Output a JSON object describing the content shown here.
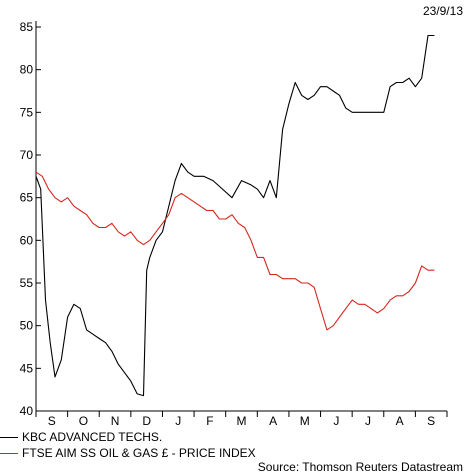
{
  "chart_data": {
    "type": "line",
    "date_label": "23/9/13",
    "source": "Source: Thomson Reuters Datastream",
    "x_tick_labels": [
      "S",
      "O",
      "N",
      "D",
      "J",
      "F",
      "M",
      "A",
      "M",
      "J",
      "J",
      "A",
      "S"
    ],
    "ylim": [
      40,
      85
    ],
    "y_ticks": [
      40,
      45,
      50,
      55,
      60,
      65,
      70,
      75,
      80,
      85
    ],
    "colors": {
      "kbc": "#000000",
      "ftse": "#d7261e"
    },
    "series": [
      {
        "name": "KBC ADVANCED TECHS.",
        "color": "#000000",
        "x": [
          0,
          0.15,
          0.3,
          0.45,
          0.6,
          0.8,
          1.0,
          1.2,
          1.4,
          1.6,
          1.8,
          2.0,
          2.2,
          2.4,
          2.6,
          2.8,
          3.0,
          3.2,
          3.4,
          3.5,
          3.6,
          3.8,
          4.0,
          4.2,
          4.4,
          4.6,
          4.8,
          5.0,
          5.3,
          5.6,
          5.9,
          6.2,
          6.5,
          6.8,
          7.0,
          7.2,
          7.4,
          7.6,
          7.8,
          8.0,
          8.2,
          8.4,
          8.6,
          8.8,
          9.0,
          9.2,
          9.4,
          9.6,
          9.8,
          10.0,
          10.2,
          10.4,
          10.6,
          10.8,
          11.0,
          11.2,
          11.4,
          11.6,
          11.8,
          12.0,
          12.2,
          12.4,
          12.6
        ],
        "values": [
          67.5,
          66,
          53,
          48,
          44,
          46,
          51,
          52.5,
          52,
          49.5,
          49,
          48.5,
          48,
          47,
          45.5,
          44.5,
          43.5,
          42,
          41.8,
          56.5,
          58,
          60,
          61,
          64,
          67,
          69,
          68,
          67.5,
          67.5,
          67,
          66,
          65,
          67,
          66.5,
          66,
          65,
          67,
          65,
          73,
          76,
          78.5,
          77,
          76.5,
          77,
          78,
          78,
          77.5,
          77,
          75.5,
          75,
          75,
          75,
          75,
          75,
          75,
          78,
          78.5,
          78.5,
          79,
          78,
          79,
          84,
          84
        ]
      },
      {
        "name": "FTSE AIM SS OIL & GAS £ - PRICE INDEX",
        "color": "#d7261e",
        "x": [
          0,
          0.2,
          0.4,
          0.6,
          0.8,
          1.0,
          1.2,
          1.4,
          1.6,
          1.8,
          2.0,
          2.2,
          2.4,
          2.6,
          2.8,
          3.0,
          3.2,
          3.4,
          3.6,
          3.8,
          4.0,
          4.2,
          4.4,
          4.6,
          4.8,
          5.0,
          5.2,
          5.4,
          5.6,
          5.8,
          6.0,
          6.2,
          6.4,
          6.6,
          6.8,
          7.0,
          7.2,
          7.4,
          7.6,
          7.8,
          8.0,
          8.2,
          8.4,
          8.6,
          8.8,
          9.0,
          9.2,
          9.4,
          9.6,
          9.8,
          10.0,
          10.2,
          10.4,
          10.6,
          10.8,
          11.0,
          11.2,
          11.4,
          11.6,
          11.8,
          12.0,
          12.2,
          12.4,
          12.6
        ],
        "values": [
          68,
          67.5,
          66,
          65,
          64.5,
          65,
          64,
          63.5,
          63,
          62,
          61.5,
          61.5,
          62,
          61,
          60.5,
          61,
          60,
          59.5,
          60,
          61,
          62,
          63,
          65,
          65.5,
          65,
          64.5,
          64,
          63.5,
          63.5,
          62.5,
          62.5,
          63,
          62,
          61.5,
          60,
          58,
          58,
          56,
          56,
          55.5,
          55.5,
          55.5,
          55,
          55,
          54.5,
          52,
          49.5,
          50,
          51,
          52,
          53,
          52.5,
          52.5,
          52,
          51.5,
          52,
          53,
          53.5,
          53.5,
          54,
          55,
          57,
          56.5,
          56.5
        ]
      }
    ]
  }
}
